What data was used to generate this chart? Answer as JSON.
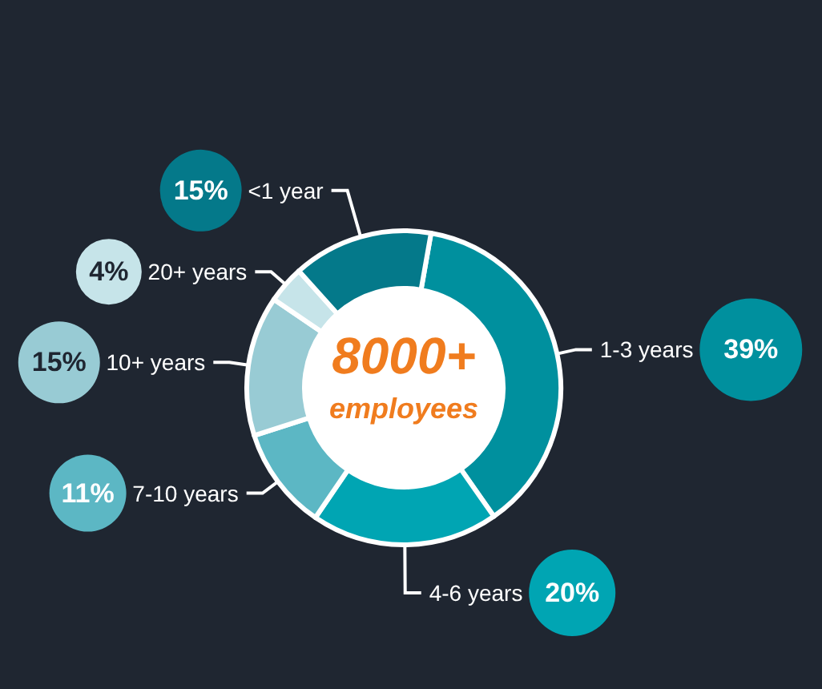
{
  "chart_data": {
    "type": "donut",
    "categories": [
      "1-3 years",
      "4-6 years",
      "7-10 years",
      "10+ years",
      "20+ years",
      "<1 year"
    ],
    "values": [
      39,
      20,
      11,
      15,
      4,
      15
    ],
    "value_labels": [
      "39%",
      "20%",
      "11%",
      "15%",
      "4%",
      "15%"
    ],
    "colors": [
      "#00909e",
      "#00a5b3",
      "#5cb7c4",
      "#98cbd4",
      "#c6e4e9",
      "#04798a"
    ],
    "annotations": [
      "8000+",
      "employees"
    ],
    "legend": false
  }
}
